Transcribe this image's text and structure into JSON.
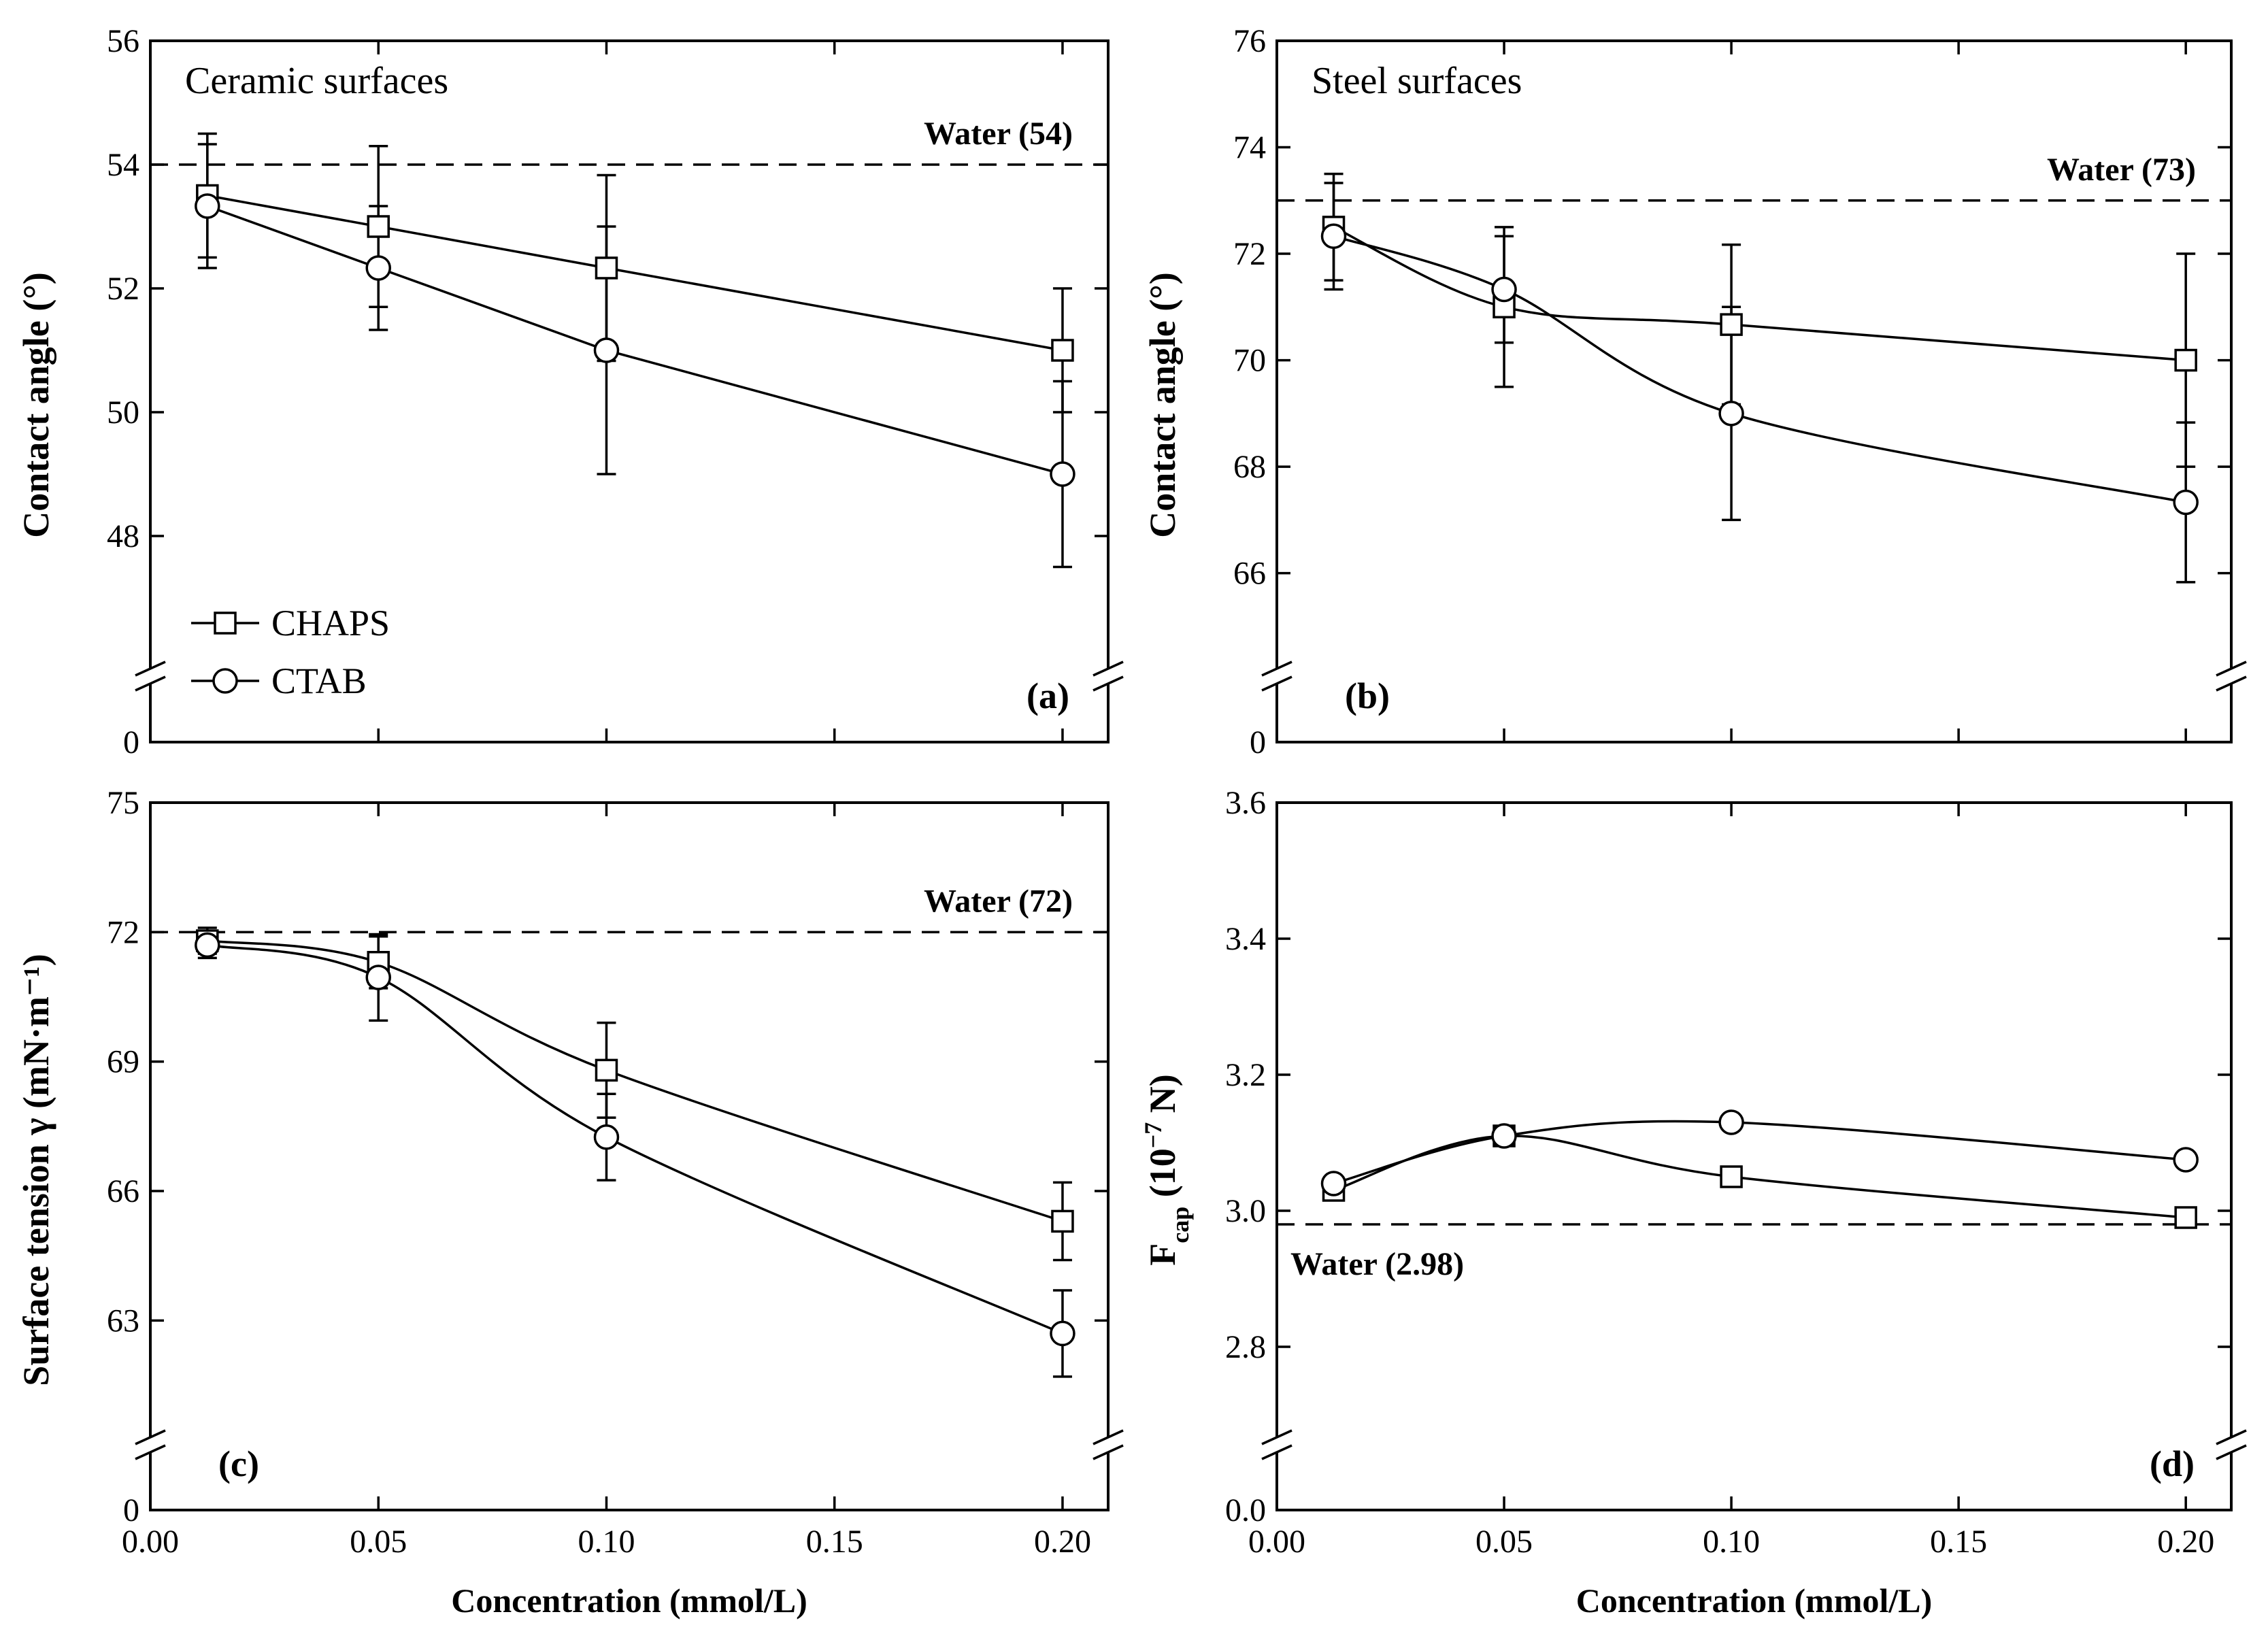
{
  "chart_data": [
    {
      "id": "a",
      "type": "line",
      "panel_label": "(a)",
      "title": "Ceramic surfaces",
      "xlabel": "",
      "ylabel": "Contact angle (°)",
      "xlim": [
        0,
        0.21
      ],
      "ylim": [
        46,
        56
      ],
      "axis_break": true,
      "zero_label": "0",
      "xticks": [
        0,
        0.05,
        0.1,
        0.15,
        0.2
      ],
      "xtick_labels": [],
      "yticks": [
        48,
        50,
        52,
        54,
        56
      ],
      "ytick_labels": [
        "48",
        "50",
        "52",
        "54",
        "56"
      ],
      "reference": {
        "value": 54,
        "label": "Water (54)",
        "label_anchor": "top-right"
      },
      "legend": {
        "position": "bottom-left",
        "entries": [
          {
            "name": "CHAPS",
            "marker": "square"
          },
          {
            "name": "CTAB",
            "marker": "circle"
          }
        ]
      },
      "series": [
        {
          "name": "CHAPS",
          "marker": "square",
          "x": [
            0.0125,
            0.05,
            0.1,
            0.2
          ],
          "y": [
            53.5,
            53.0,
            52.33,
            51.0
          ],
          "err": [
            1.0,
            1.3,
            1.5,
            1.0
          ],
          "curve": "straight"
        },
        {
          "name": "CTAB",
          "marker": "circle",
          "x": [
            0.0125,
            0.05,
            0.1,
            0.2
          ],
          "y": [
            53.33,
            52.33,
            51.0,
            49.0
          ],
          "err": [
            1.0,
            1.0,
            2.0,
            1.5
          ],
          "curve": "straight"
        }
      ]
    },
    {
      "id": "b",
      "type": "line",
      "panel_label": "(b)",
      "title": "Steel surfaces",
      "xlabel": "",
      "ylabel": "Contact angle (°)",
      "xlim": [
        0,
        0.21
      ],
      "ylim": [
        64.5,
        76
      ],
      "axis_break": true,
      "zero_label": "0",
      "xticks": [
        0,
        0.05,
        0.1,
        0.15,
        0.2
      ],
      "xtick_labels": [],
      "yticks": [
        66,
        68,
        70,
        72,
        74,
        76
      ],
      "ytick_labels": [
        "66",
        "68",
        "70",
        "72",
        "74",
        "76"
      ],
      "reference": {
        "value": 73,
        "label": "Water (73)",
        "label_anchor": "top-right"
      },
      "series": [
        {
          "name": "CHAPS",
          "marker": "square",
          "x": [
            0.0125,
            0.05,
            0.1,
            0.2
          ],
          "y": [
            72.5,
            71.0,
            70.67,
            70.0
          ],
          "err": [
            1.0,
            1.5,
            1.5,
            2.0
          ],
          "curve": "smooth"
        },
        {
          "name": "CTAB",
          "marker": "circle",
          "x": [
            0.0125,
            0.05,
            0.1,
            0.2
          ],
          "y": [
            72.33,
            71.33,
            69.0,
            67.33
          ],
          "err": [
            1.0,
            1.0,
            2.0,
            1.5
          ],
          "curve": "smooth"
        }
      ]
    },
    {
      "id": "c",
      "type": "line",
      "panel_label": "(c)",
      "title": "",
      "xlabel": "Concentration (mmol/L)",
      "ylabel": "Surface tension γ (mN·m⁻¹)",
      "xlim": [
        0,
        0.21
      ],
      "ylim": [
        60.5,
        75
      ],
      "axis_break": true,
      "zero_label": "0",
      "xticks": [
        0,
        0.05,
        0.1,
        0.15,
        0.2
      ],
      "xtick_labels": [
        "0.00",
        "0.05",
        "0.10",
        "0.15",
        "0.20"
      ],
      "yticks": [
        63,
        66,
        69,
        72,
        75
      ],
      "ytick_labels": [
        "63",
        "66",
        "69",
        "72",
        "75"
      ],
      "reference": {
        "value": 72,
        "label": "Water (72)",
        "label_anchor": "top-right"
      },
      "series": [
        {
          "name": "CHAPS",
          "marker": "square",
          "x": [
            0.0125,
            0.05,
            0.1,
            0.2
          ],
          "y": [
            71.8,
            71.3,
            68.8,
            65.3
          ],
          "err": [
            0.3,
            0.6,
            1.1,
            0.9
          ],
          "curve": "smooth"
        },
        {
          "name": "CTAB",
          "marker": "circle",
          "x": [
            0.0125,
            0.05,
            0.1,
            0.2
          ],
          "y": [
            71.7,
            70.95,
            67.25,
            62.7
          ],
          "err": [
            0.3,
            1.0,
            1.0,
            1.0
          ],
          "curve": "smooth"
        }
      ]
    },
    {
      "id": "d",
      "type": "line",
      "panel_label": "(d)",
      "title": "",
      "xlabel": "Concentration (mmol/L)",
      "ylabel": "F_cap (10⁻⁷ N)",
      "ylabel_parts": {
        "symbol": "F",
        "subscript": "cap",
        "rest_open": " (10",
        "exponent": "−7",
        "rest_close": " N)"
      },
      "xlim": [
        0,
        0.21
      ],
      "ylim": [
        2.68,
        3.6
      ],
      "axis_break": true,
      "zero_label": "0.0",
      "xticks": [
        0,
        0.05,
        0.1,
        0.15,
        0.2
      ],
      "xtick_labels": [
        "0.00",
        "0.05",
        "0.10",
        "0.15",
        "0.20"
      ],
      "yticks": [
        2.8,
        3.0,
        3.2,
        3.4,
        3.6
      ],
      "ytick_labels": [
        "2.8",
        "3.0",
        "3.2",
        "3.4",
        "3.6"
      ],
      "reference": {
        "value": 2.98,
        "label": "Water (2.98)",
        "label_anchor": "below-left"
      },
      "series": [
        {
          "name": "CHAPS",
          "marker": "square",
          "x": [
            0.0125,
            0.05,
            0.1,
            0.2
          ],
          "y": [
            3.03,
            3.11,
            3.05,
            2.99
          ],
          "err": [
            0,
            0,
            0,
            0
          ],
          "curve": "smooth"
        },
        {
          "name": "CTAB",
          "marker": "circle",
          "x": [
            0.0125,
            0.05,
            0.1,
            0.2
          ],
          "y": [
            3.04,
            3.11,
            3.13,
            3.075
          ],
          "err": [
            0,
            0,
            0,
            0
          ],
          "curve": "smooth"
        }
      ]
    }
  ]
}
